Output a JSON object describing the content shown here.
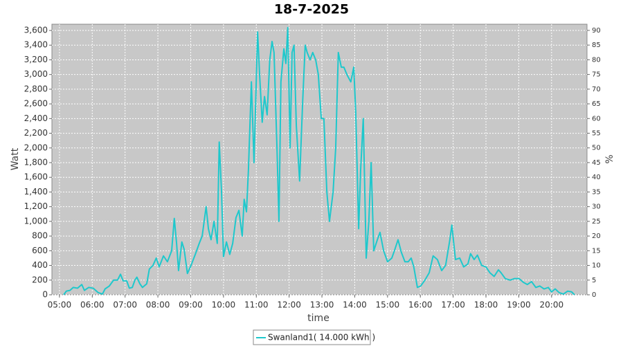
{
  "chart_data": {
    "type": "line",
    "title": "18-7-2025",
    "x_label": "time",
    "y_label": "Watt",
    "y2_label": "%",
    "grid": true,
    "legend_position": "bottom",
    "xlim": [
      4.77,
      21.08
    ],
    "xticks": [
      {
        "value": 5,
        "label": "05:00"
      },
      {
        "value": 6,
        "label": "06:00"
      },
      {
        "value": 7,
        "label": "07:00"
      },
      {
        "value": 8,
        "label": "08:00"
      },
      {
        "value": 9,
        "label": "09:00"
      },
      {
        "value": 10,
        "label": "10:00"
      },
      {
        "value": 11,
        "label": "11:00"
      },
      {
        "value": 12,
        "label": "12:00"
      },
      {
        "value": 13,
        "label": "13:00"
      },
      {
        "value": 14,
        "label": "14:00"
      },
      {
        "value": 15,
        "label": "15:00"
      },
      {
        "value": 16,
        "label": "16:00"
      },
      {
        "value": 17,
        "label": "17:00"
      },
      {
        "value": 18,
        "label": "18:00"
      },
      {
        "value": 19,
        "label": "19:00"
      },
      {
        "value": 20,
        "label": "20:00"
      }
    ],
    "ylim": [
      0,
      3685
    ],
    "yticks": [
      0,
      200,
      400,
      600,
      800,
      {
        "value": 1000,
        "label": "1,000"
      },
      {
        "value": 1200,
        "label": "1,200"
      },
      {
        "value": 1400,
        "label": "1,400"
      },
      {
        "value": 1600,
        "label": "1,600"
      },
      {
        "value": 1800,
        "label": "1,800"
      },
      {
        "value": 2000,
        "label": "2,000"
      },
      {
        "value": 2200,
        "label": "2,200"
      },
      {
        "value": 2400,
        "label": "2,400"
      },
      {
        "value": 2600,
        "label": "2,600"
      },
      {
        "value": 2800,
        "label": "2,800"
      },
      {
        "value": 3000,
        "label": "3,000"
      },
      {
        "value": 3200,
        "label": "3,200"
      },
      {
        "value": 3400,
        "label": "3,400"
      },
      {
        "value": 3600,
        "label": "3,600"
      }
    ],
    "y2lim": [
      0,
      92.1
    ],
    "y2ticks": [
      0,
      5,
      10,
      15,
      20,
      25,
      30,
      35,
      40,
      45,
      50,
      55,
      60,
      65,
      70,
      75,
      80,
      85,
      90
    ],
    "x": [
      5.13,
      5.21,
      5.32,
      5.42,
      5.55,
      5.68,
      5.76,
      5.89,
      6.03,
      6.18,
      6.31,
      6.39,
      6.52,
      6.65,
      6.77,
      6.86,
      6.94,
      7.05,
      7.13,
      7.22,
      7.3,
      7.36,
      7.45,
      7.53,
      7.66,
      7.74,
      7.85,
      7.95,
      8.04,
      8.17,
      8.29,
      8.42,
      8.5,
      8.57,
      8.63,
      8.73,
      8.8,
      8.9,
      9.01,
      9.14,
      9.26,
      9.35,
      9.47,
      9.54,
      9.62,
      9.71,
      9.81,
      9.87,
      9.94,
      10.0,
      10.09,
      10.19,
      10.28,
      10.38,
      10.47,
      10.57,
      10.63,
      10.7,
      10.76,
      10.85,
      10.93,
      11.04,
      11.1,
      11.18,
      11.25,
      11.33,
      11.41,
      11.48,
      11.54,
      11.63,
      11.69,
      11.75,
      11.84,
      11.9,
      11.96,
      12.03,
      12.09,
      12.15,
      12.22,
      12.32,
      12.41,
      12.49,
      12.55,
      12.64,
      12.72,
      12.81,
      12.89,
      12.98,
      13.06,
      13.15,
      13.23,
      13.34,
      13.42,
      13.5,
      13.59,
      13.67,
      13.76,
      13.88,
      13.97,
      14.03,
      14.12,
      14.18,
      14.26,
      14.35,
      14.43,
      14.5,
      14.58,
      14.69,
      14.77,
      14.88,
      15.0,
      15.13,
      15.21,
      15.32,
      15.42,
      15.53,
      15.63,
      15.72,
      15.8,
      15.91,
      16.01,
      16.14,
      16.27,
      16.39,
      16.52,
      16.65,
      16.77,
      16.9,
      16.96,
      17.07,
      17.2,
      17.32,
      17.45,
      17.53,
      17.64,
      17.74,
      17.87,
      18.0,
      18.12,
      18.25,
      18.38,
      18.46,
      18.59,
      18.74,
      18.86,
      19.01,
      19.14,
      19.26,
      19.39,
      19.52,
      19.64,
      19.77,
      19.9,
      20.0,
      20.11,
      20.23,
      20.36,
      20.49,
      20.61,
      20.7
    ],
    "series": [
      {
        "name": "Swanland1( 14.000 kWh )",
        "color": "#1ec8cc",
        "values": [
          0,
          50,
          60,
          100,
          90,
          140,
          60,
          100,
          90,
          30,
          10,
          80,
          120,
          200,
          200,
          280,
          190,
          190,
          90,
          100,
          200,
          240,
          150,
          100,
          150,
          350,
          400,
          500,
          380,
          530,
          450,
          600,
          1040,
          700,
          330,
          720,
          620,
          290,
          400,
          550,
          700,
          800,
          1200,
          900,
          750,
          1000,
          700,
          2080,
          1400,
          520,
          720,
          550,
          700,
          1050,
          1150,
          800,
          1300,
          1130,
          1700,
          2900,
          1800,
          3580,
          3000,
          2350,
          2700,
          2450,
          3200,
          3450,
          3300,
          2000,
          1000,
          2900,
          3350,
          3150,
          3640,
          2000,
          3300,
          3400,
          2300,
          1550,
          2600,
          3400,
          3300,
          3200,
          3300,
          3200,
          3000,
          2400,
          2400,
          1400,
          1000,
          1400,
          2000,
          3300,
          3100,
          3100,
          3000,
          2900,
          3100,
          2500,
          900,
          1700,
          2400,
          500,
          1000,
          1800,
          600,
          750,
          850,
          600,
          450,
          500,
          600,
          750,
          580,
          450,
          450,
          500,
          380,
          100,
          120,
          200,
          300,
          530,
          480,
          330,
          400,
          750,
          950,
          480,
          500,
          380,
          420,
          560,
          480,
          540,
          400,
          380,
          300,
          250,
          340,
          300,
          220,
          200,
          220,
          220,
          170,
          140,
          180,
          100,
          120,
          80,
          100,
          40,
          80,
          30,
          10,
          50,
          40,
          0
        ]
      }
    ]
  }
}
